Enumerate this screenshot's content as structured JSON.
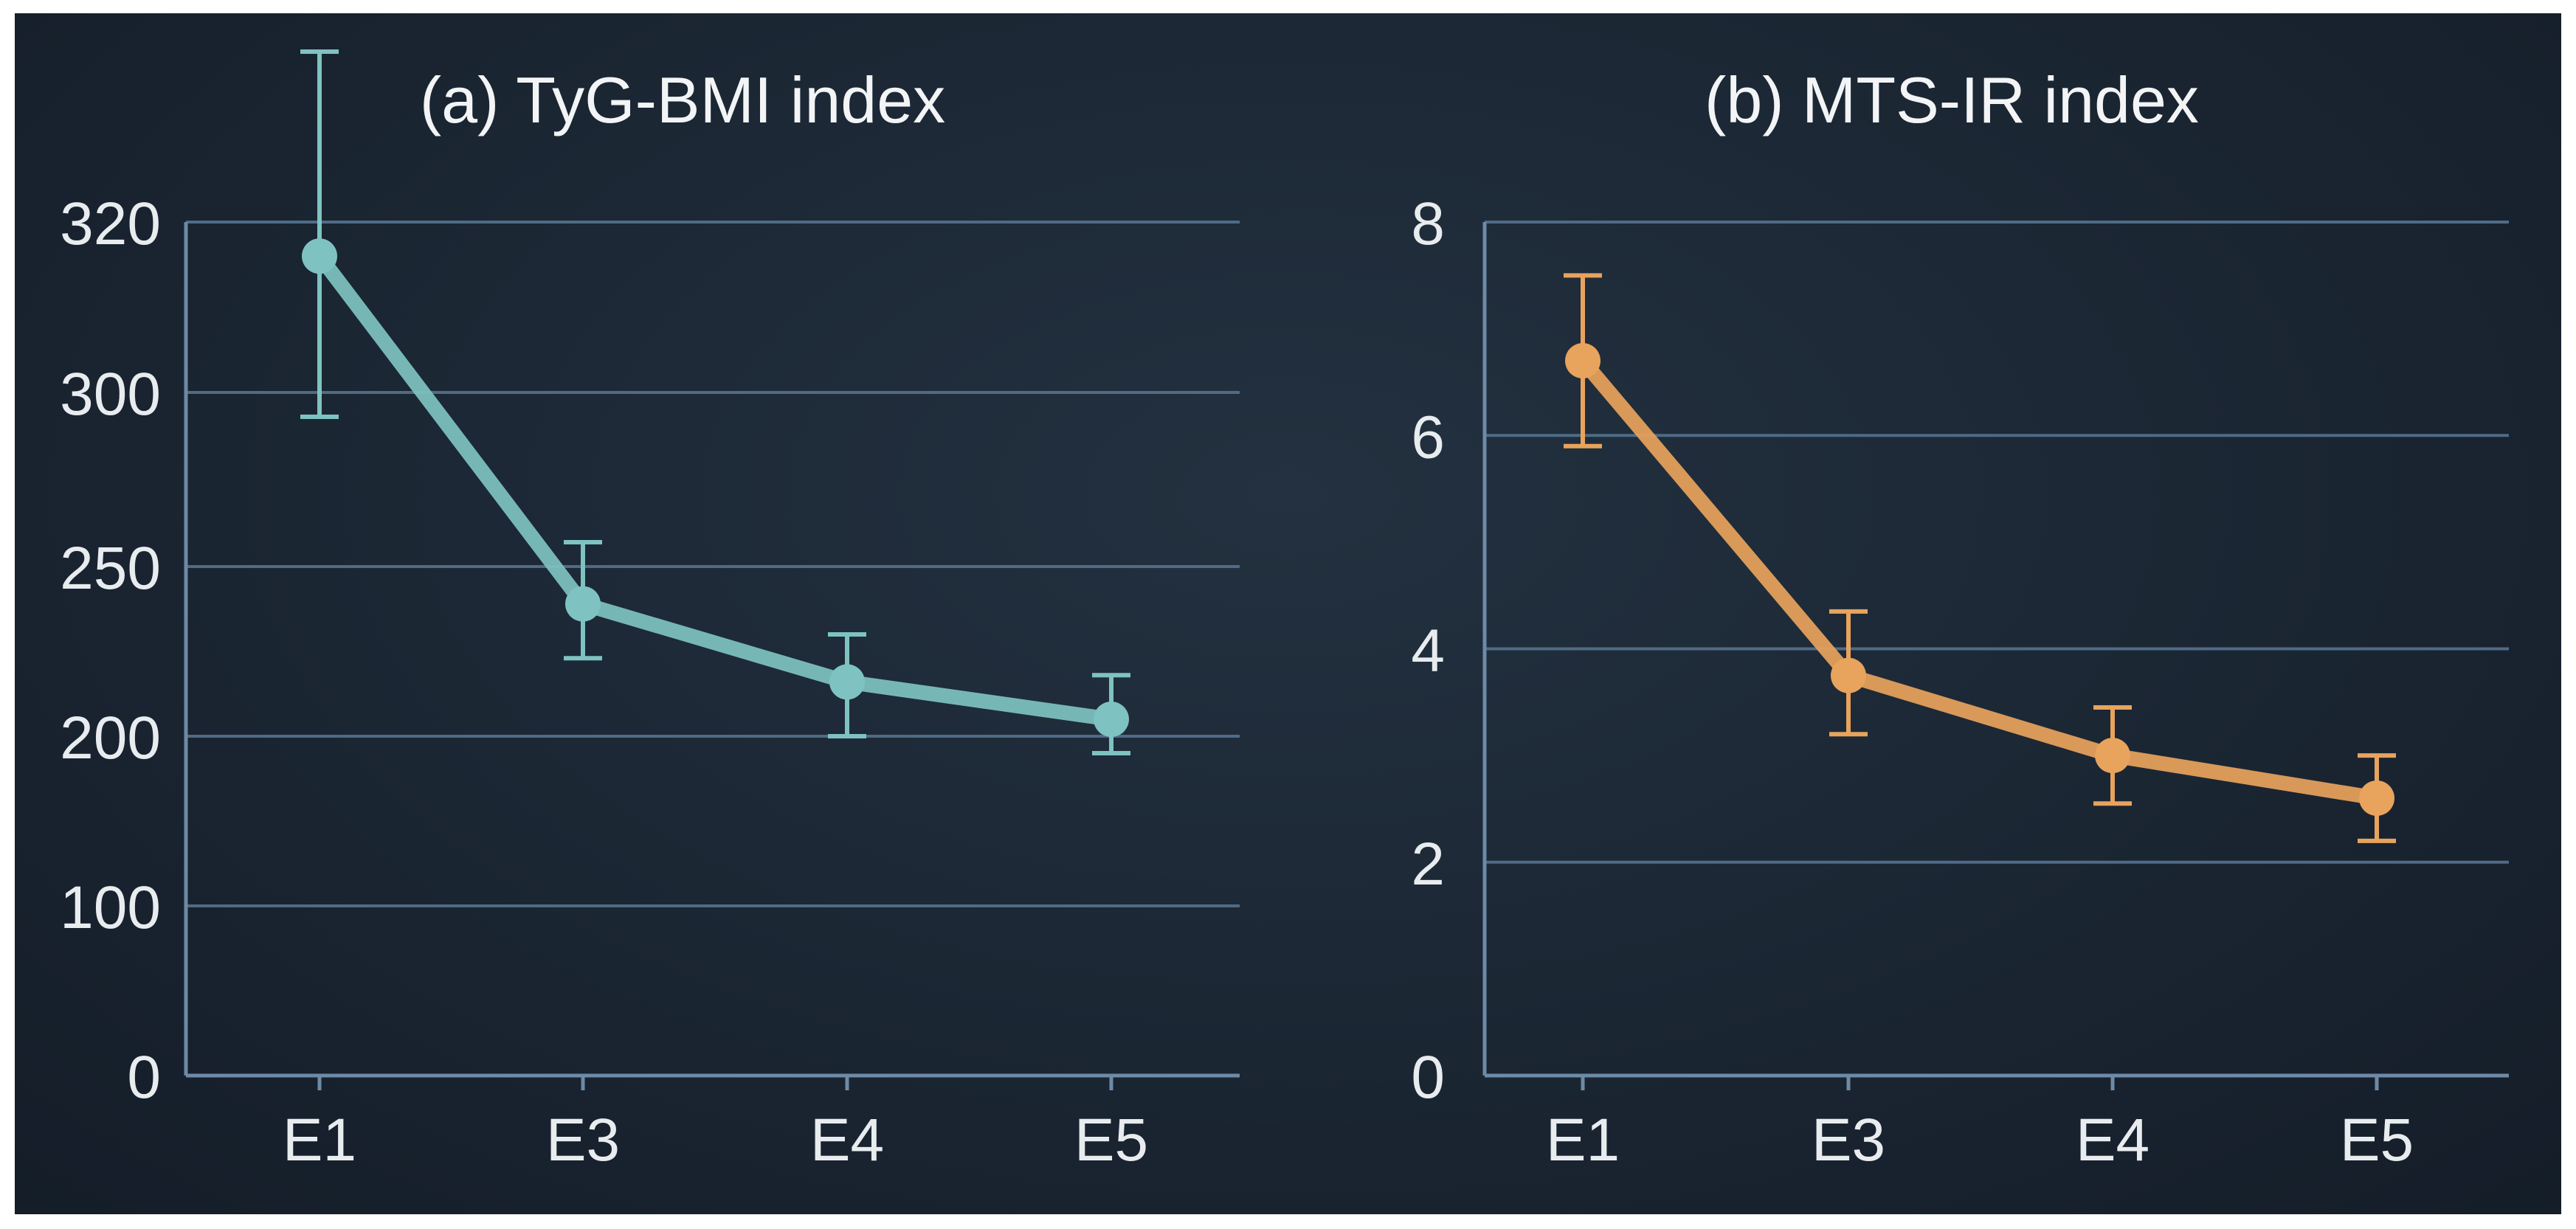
{
  "chart_data": [
    {
      "type": "line",
      "title": "(a) TyG-BMI index",
      "xlabel": "",
      "ylabel": "",
      "categories": [
        "E1",
        "E3",
        "E4",
        "E5"
      ],
      "y_ticks": [
        "0",
        "100",
        "200",
        "250",
        "300",
        "320"
      ],
      "series": [
        {
          "values": [
            316,
            239,
            216,
            205
          ],
          "error_low": [
            293,
            223,
            200,
            190
          ],
          "error_high": [
            340,
            257,
            230,
            218
          ]
        }
      ],
      "grid": true,
      "color": "#7ec3c1"
    },
    {
      "type": "line",
      "title": "(b) MTS-IR index",
      "xlabel": "",
      "ylabel": "",
      "categories": [
        "E1",
        "E3",
        "E4",
        "E5"
      ],
      "y_ticks": [
        "0",
        "2",
        "4",
        "6",
        "8"
      ],
      "ylim": [
        0,
        8
      ],
      "series": [
        {
          "values": [
            6.7,
            3.75,
            3.0,
            2.6
          ],
          "error_low": [
            5.9,
            3.2,
            2.55,
            2.2
          ],
          "error_high": [
            7.5,
            4.35,
            3.45,
            3.0
          ]
        }
      ],
      "grid": true,
      "color": "#e8a35c"
    }
  ]
}
